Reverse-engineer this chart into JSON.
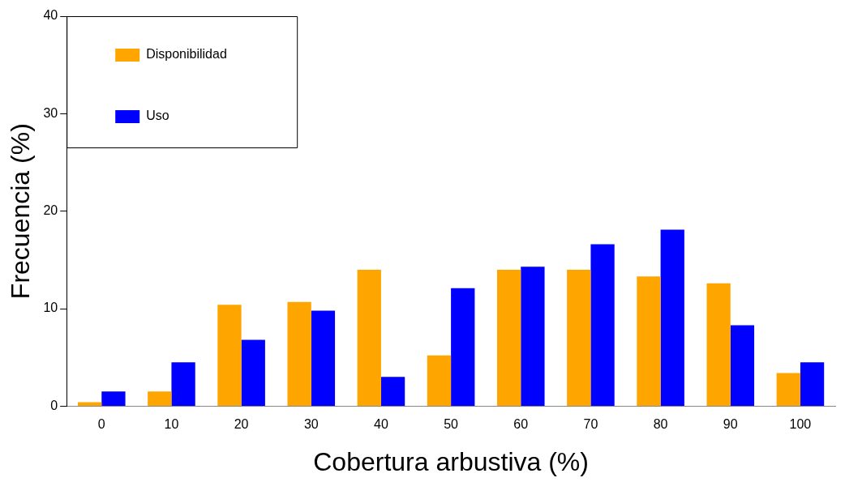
{
  "chart_data": {
    "type": "bar",
    "xlabel": "Cobertura arbustiva (%)",
    "ylabel": "Frecuencia (%)",
    "categories": [
      "0",
      "10",
      "20",
      "30",
      "40",
      "50",
      "60",
      "70",
      "80",
      "90",
      "100"
    ],
    "series": [
      {
        "name": "Disponibilidad",
        "color": "#ffa500",
        "values": [
          0.4,
          1.5,
          10.4,
          10.7,
          14.0,
          5.2,
          14.0,
          14.0,
          13.3,
          12.6,
          3.4
        ]
      },
      {
        "name": "Uso",
        "color": "#0000ff",
        "values": [
          1.5,
          4.5,
          6.8,
          9.8,
          3.0,
          12.1,
          14.3,
          16.6,
          18.1,
          8.3,
          4.5
        ]
      }
    ],
    "ylim": [
      0,
      40
    ],
    "yticks": [
      0,
      10,
      20,
      30,
      40
    ],
    "grid": false,
    "legend": "top left"
  }
}
